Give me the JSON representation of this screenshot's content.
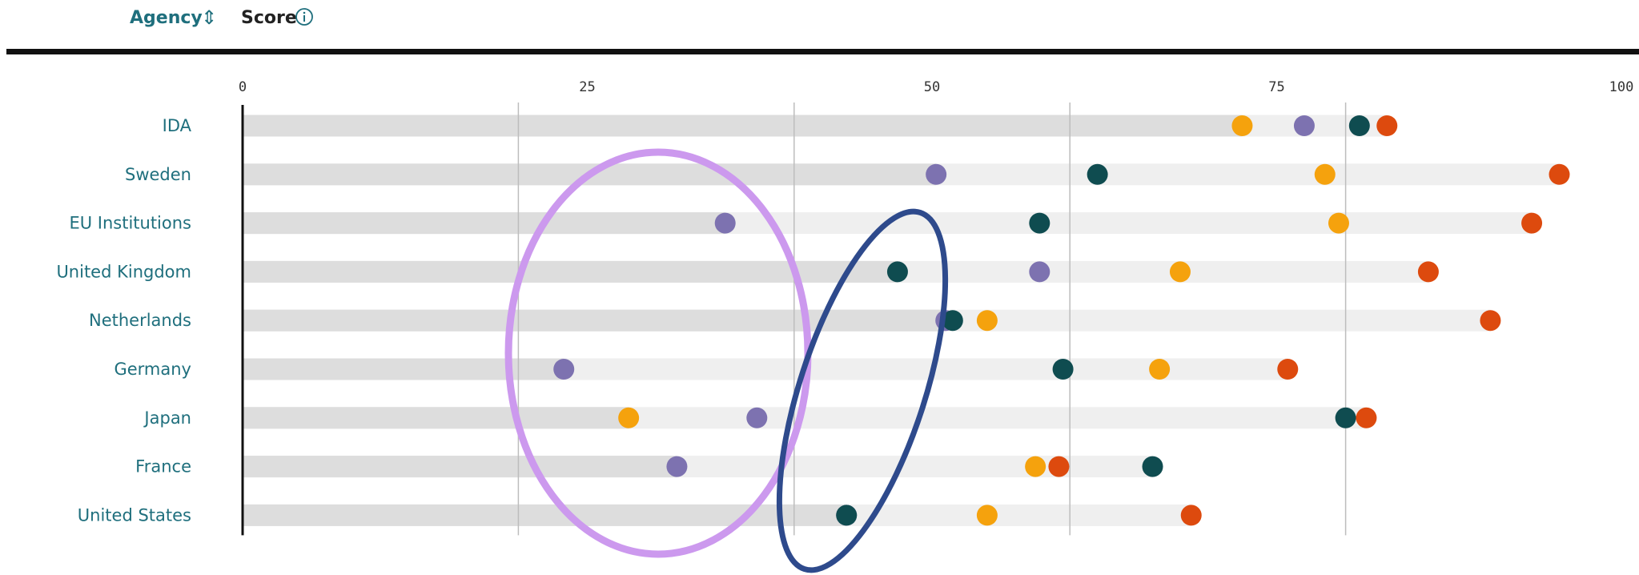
{
  "header": {
    "agency_label": "Agency",
    "sort_icon": "sort-updown-icon",
    "score_label": "Score",
    "info_icon": "info-circle-icon"
  },
  "colors": {
    "accent": "#1f6f7d",
    "track_dark": "#dddddd",
    "track_light": "#efefef",
    "gridline": "#bdbdbd",
    "ellipse_purple": "#cc99ee",
    "ellipse_navy": "#2e4a8c"
  },
  "chart_data": {
    "type": "scatter",
    "subtype": "dot-plot",
    "xlim": [
      0,
      100
    ],
    "xticks": [
      "0",
      "25",
      "50",
      "75",
      "100"
    ],
    "gridlines_at": [
      20,
      40,
      60,
      80
    ],
    "categories": [
      "IDA",
      "Sweden",
      "EU Institutions",
      "United Kingdom",
      "Netherlands",
      "Germany",
      "Japan",
      "France",
      "United States"
    ],
    "series": [
      {
        "color": "#f5a20d",
        "values": [
          72.5,
          78.5,
          79.5,
          68,
          54,
          66.5,
          28,
          57.5,
          54
        ]
      },
      {
        "color": "#7d72b0",
        "values": [
          77,
          50.3,
          35,
          57.8,
          51,
          23.3,
          37.3,
          31.5,
          43.8
        ]
      },
      {
        "color": "#0f4c50",
        "values": [
          81,
          62,
          57.8,
          47.5,
          51.5,
          59.5,
          80,
          66,
          43.8
        ]
      },
      {
        "color": "#dd4a0e",
        "values": [
          83,
          95.5,
          93.5,
          86,
          90.5,
          75.8,
          81.5,
          59.2,
          68.8
        ]
      }
    ],
    "annotations": [
      {
        "type": "ellipse",
        "color": "#cc99ee"
      },
      {
        "type": "ellipse",
        "color": "#2e4a8c"
      }
    ]
  }
}
